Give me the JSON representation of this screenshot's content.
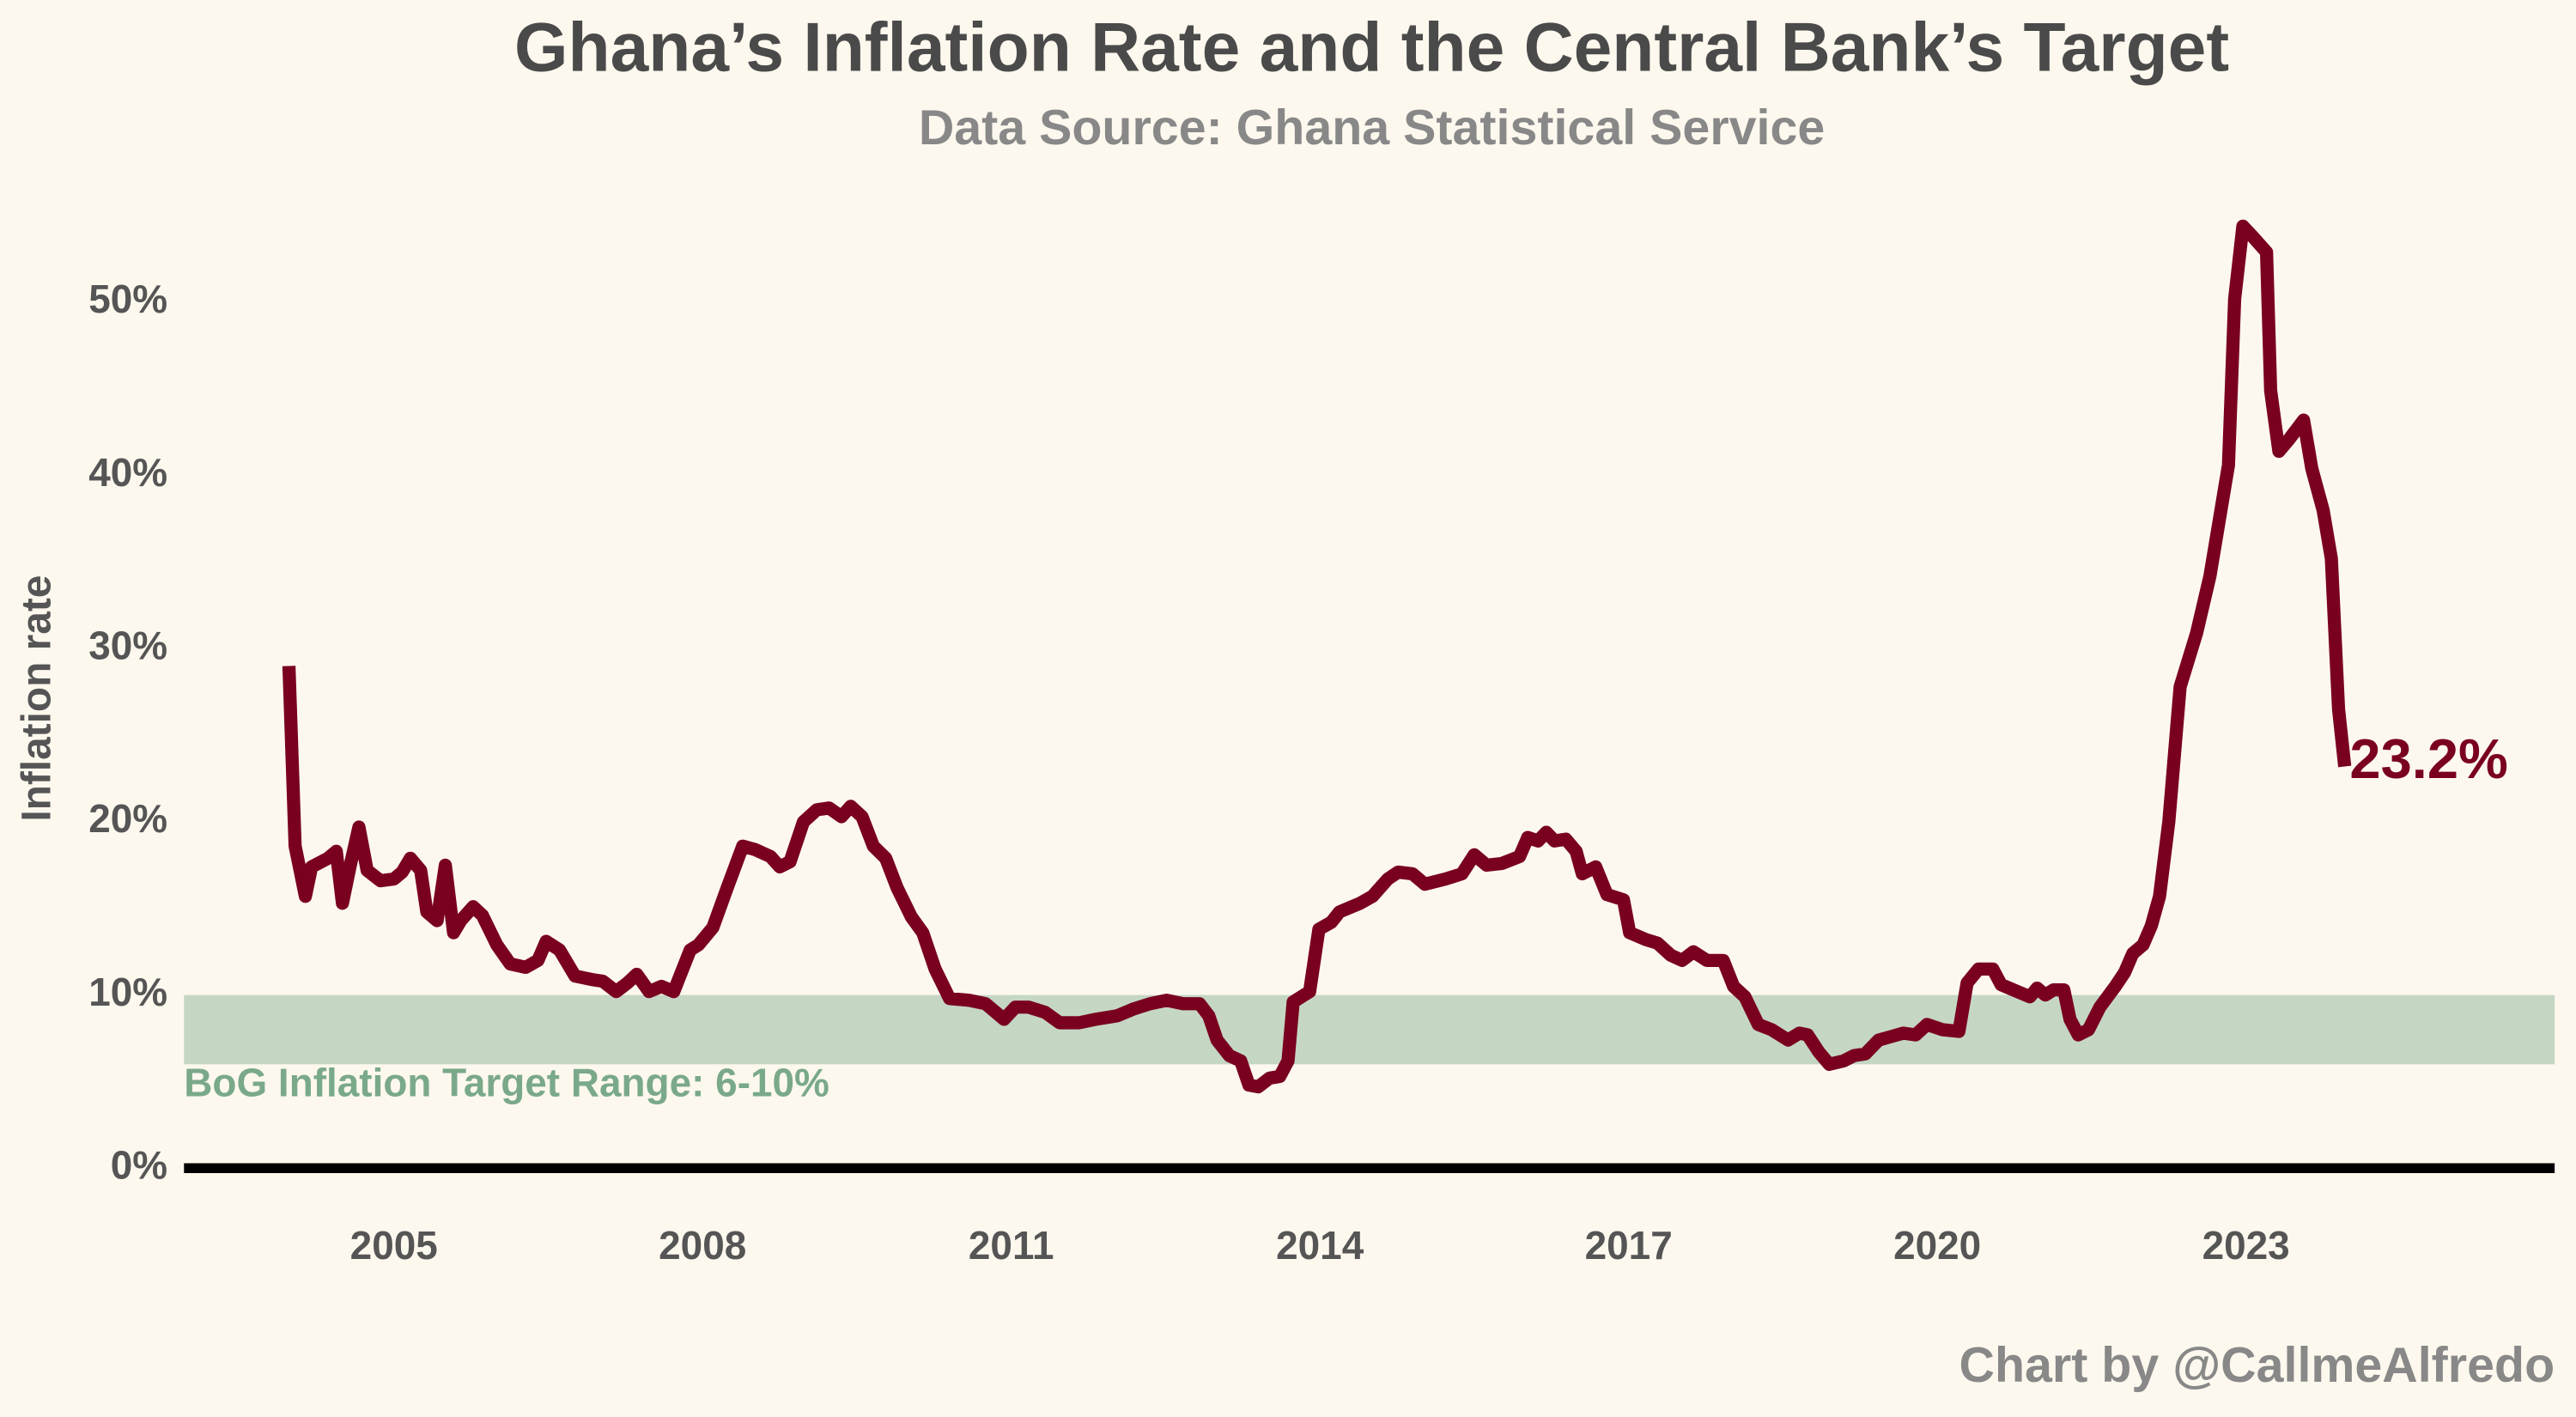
{
  "chart_data": {
    "type": "line",
    "title": "Ghana’s Inflation Rate and the Central Bank’s Target",
    "subtitle": "Data Source: Ghana Statistical Service",
    "y_label": "Inflation rate",
    "credit": "Chart by @CallmeAlfredo",
    "color": "#7a0020",
    "x": [
      2003.98,
      2004.04,
      2004.14,
      2004.2,
      2004.36,
      2004.44,
      2004.5,
      2004.58,
      2004.66,
      2004.74,
      2004.87,
      2005.0,
      2005.08,
      2005.16,
      2005.26,
      2005.32,
      2005.42,
      2005.5,
      2005.58,
      2005.65,
      2005.77,
      2005.86,
      2006.0,
      2006.13,
      2006.28,
      2006.4,
      2006.48,
      2006.61,
      2006.76,
      2006.92,
      2007.03,
      2007.16,
      2007.27,
      2007.36,
      2007.48,
      2007.6,
      2007.72,
      2007.88,
      2007.96,
      2008.1,
      2008.24,
      2008.39,
      2008.51,
      2008.66,
      2008.75,
      2008.85,
      2008.98,
      2009.11,
      2009.23,
      2009.35,
      2009.44,
      2009.55,
      2009.66,
      2009.78,
      2009.89,
      2010.03,
      2010.14,
      2010.26,
      2010.4,
      2010.59,
      2010.75,
      2010.93,
      2011.04,
      2011.17,
      2011.33,
      2011.47,
      2011.66,
      2011.82,
      2012.03,
      2012.19,
      2012.35,
      2012.51,
      2012.67,
      2012.83,
      2012.92,
      2013.0,
      2013.12,
      2013.23,
      2013.31,
      2013.4,
      2013.51,
      2013.61,
      2013.69,
      2013.74,
      2013.9,
      2013.99,
      2014.11,
      2014.19,
      2014.39,
      2014.51,
      2014.66,
      2014.76,
      2014.9,
      2015.02,
      2015.22,
      2015.38,
      2015.5,
      2015.62,
      2015.77,
      2015.94,
      2016.02,
      2016.12,
      2016.2,
      2016.28,
      2016.39,
      2016.49,
      2016.55,
      2016.68,
      2016.79,
      2016.95,
      2017.01,
      2017.17,
      2017.28,
      2017.41,
      2017.52,
      2017.63,
      2017.76,
      2017.92,
      2018.02,
      2018.13,
      2018.26,
      2018.39,
      2018.55,
      2018.66,
      2018.74,
      2018.85,
      2018.95,
      2019.09,
      2019.19,
      2019.3,
      2019.43,
      2019.55,
      2019.67,
      2019.79,
      2019.9,
      2020.05,
      2020.21,
      2020.29,
      2020.4,
      2020.54,
      2020.62,
      2020.78,
      2020.9,
      2020.97,
      2021.05,
      2021.13,
      2021.23,
      2021.29,
      2021.37,
      2021.47,
      2021.58,
      2021.73,
      2021.82,
      2021.9,
      2022.0,
      2022.08,
      2022.16,
      2022.25,
      2022.36,
      2022.52,
      2022.65,
      2022.83,
      2022.89,
      2022.97,
      2023.05,
      2023.2,
      2023.24,
      2023.32,
      2023.42,
      2023.56,
      2023.64,
      2023.75,
      2023.83,
      2023.9,
      2023.96
    ],
    "values": [
      29.0,
      18.6,
      15.7,
      17.4,
      17.9,
      18.3,
      15.3,
      17.6,
      19.7,
      17.2,
      16.6,
      16.7,
      17.1,
      17.9,
      17.2,
      14.8,
      14.3,
      17.5,
      13.6,
      14.3,
      15.1,
      14.6,
      12.9,
      11.8,
      11.6,
      12.0,
      13.1,
      12.6,
      11.1,
      10.9,
      10.8,
      10.2,
      10.7,
      11.2,
      10.2,
      10.5,
      10.2,
      12.6,
      12.9,
      13.9,
      16.2,
      18.6,
      18.4,
      18.0,
      17.4,
      17.7,
      20.0,
      20.7,
      20.8,
      20.3,
      20.9,
      20.3,
      18.6,
      17.9,
      16.2,
      14.5,
      13.6,
      11.5,
      9.8,
      9.7,
      9.5,
      8.6,
      9.3,
      9.3,
      9.0,
      8.4,
      8.4,
      8.6,
      8.8,
      9.2,
      9.5,
      9.7,
      9.5,
      9.5,
      8.8,
      7.4,
      6.5,
      6.2,
      4.8,
      4.7,
      5.2,
      5.3,
      6.2,
      9.6,
      10.2,
      13.8,
      14.2,
      14.8,
      15.3,
      15.7,
      16.7,
      17.1,
      17.0,
      16.4,
      16.7,
      17.0,
      18.1,
      17.5,
      17.6,
      18.0,
      19.1,
      18.9,
      19.4,
      18.9,
      19.0,
      18.3,
      17.0,
      17.4,
      15.8,
      15.5,
      13.6,
      13.2,
      13.0,
      12.3,
      12.0,
      12.5,
      12.0,
      12.0,
      10.5,
      9.9,
      8.3,
      8.0,
      7.4,
      7.8,
      7.7,
      6.7,
      6.0,
      6.2,
      6.5,
      6.6,
      7.4,
      7.6,
      7.8,
      7.7,
      8.3,
      8.0,
      7.9,
      10.7,
      11.5,
      11.5,
      10.6,
      10.2,
      9.9,
      10.4,
      10.0,
      10.3,
      10.3,
      8.6,
      7.7,
      8.0,
      9.3,
      10.5,
      11.3,
      12.4,
      12.9,
      14.0,
      15.7,
      20.0,
      27.8,
      30.9,
      34.2,
      40.6,
      50.2,
      54.4,
      53.9,
      52.9,
      44.9,
      41.4,
      42.1,
      43.2,
      40.4,
      38.0,
      35.2,
      26.5,
      23.2
    ],
    "end_label": "23.2%",
    "target_band": {
      "range": [
        6,
        10
      ],
      "label": "BoG Inflation Target Range: 6-10%",
      "color": "#c5d7c3",
      "label_color": "#7aa98a"
    },
    "xlim": [
      2002.96,
      2026.0
    ],
    "xticks": [
      2005,
      2008,
      2011,
      2014,
      2017,
      2020,
      2023
    ],
    "ylim": [
      -3,
      56
    ],
    "yticks": [
      {
        "value": 0,
        "label": "0%"
      },
      {
        "value": 10,
        "label": "10%"
      },
      {
        "value": 20,
        "label": "20%"
      },
      {
        "value": 30,
        "label": "30%"
      },
      {
        "value": 40,
        "label": "40%"
      },
      {
        "value": 50,
        "label": "50%"
      }
    ],
    "grid": false
  }
}
